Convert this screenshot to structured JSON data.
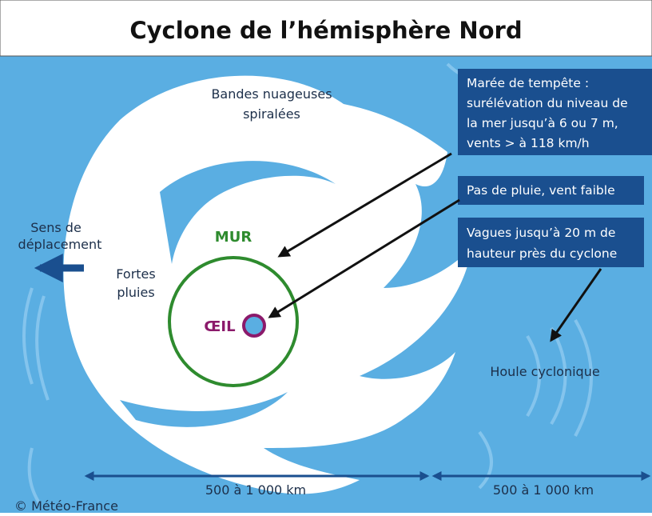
{
  "header": {
    "title": "Cyclone de l’hémisphère Nord"
  },
  "labels": {
    "spiral_bands": [
      "Bandes nuageuses",
      "spiralées"
    ],
    "direction": [
      "Sens de",
      "déplacement"
    ],
    "wall": "MUR",
    "heavy_rain": [
      "Fortes",
      "pluies"
    ],
    "eye": "ŒIL",
    "swell": "Houle cyclonique"
  },
  "callouts": [
    {
      "lines": [
        "Marée de tempête :",
        "surélévation du niveau de",
        "la mer jusqu’à 6 ou 7 m,",
        "vents > à 118 km/h"
      ]
    },
    {
      "lines": [
        "Pas de pluie, vent faible"
      ]
    },
    {
      "lines": [
        "Vagues jusqu’à 20 m de",
        "hauteur près du cyclone"
      ]
    }
  ],
  "scale": [
    "500 à 1 000 km",
    "500 à 1 000 km"
  ],
  "credit": "© Météo-France"
}
